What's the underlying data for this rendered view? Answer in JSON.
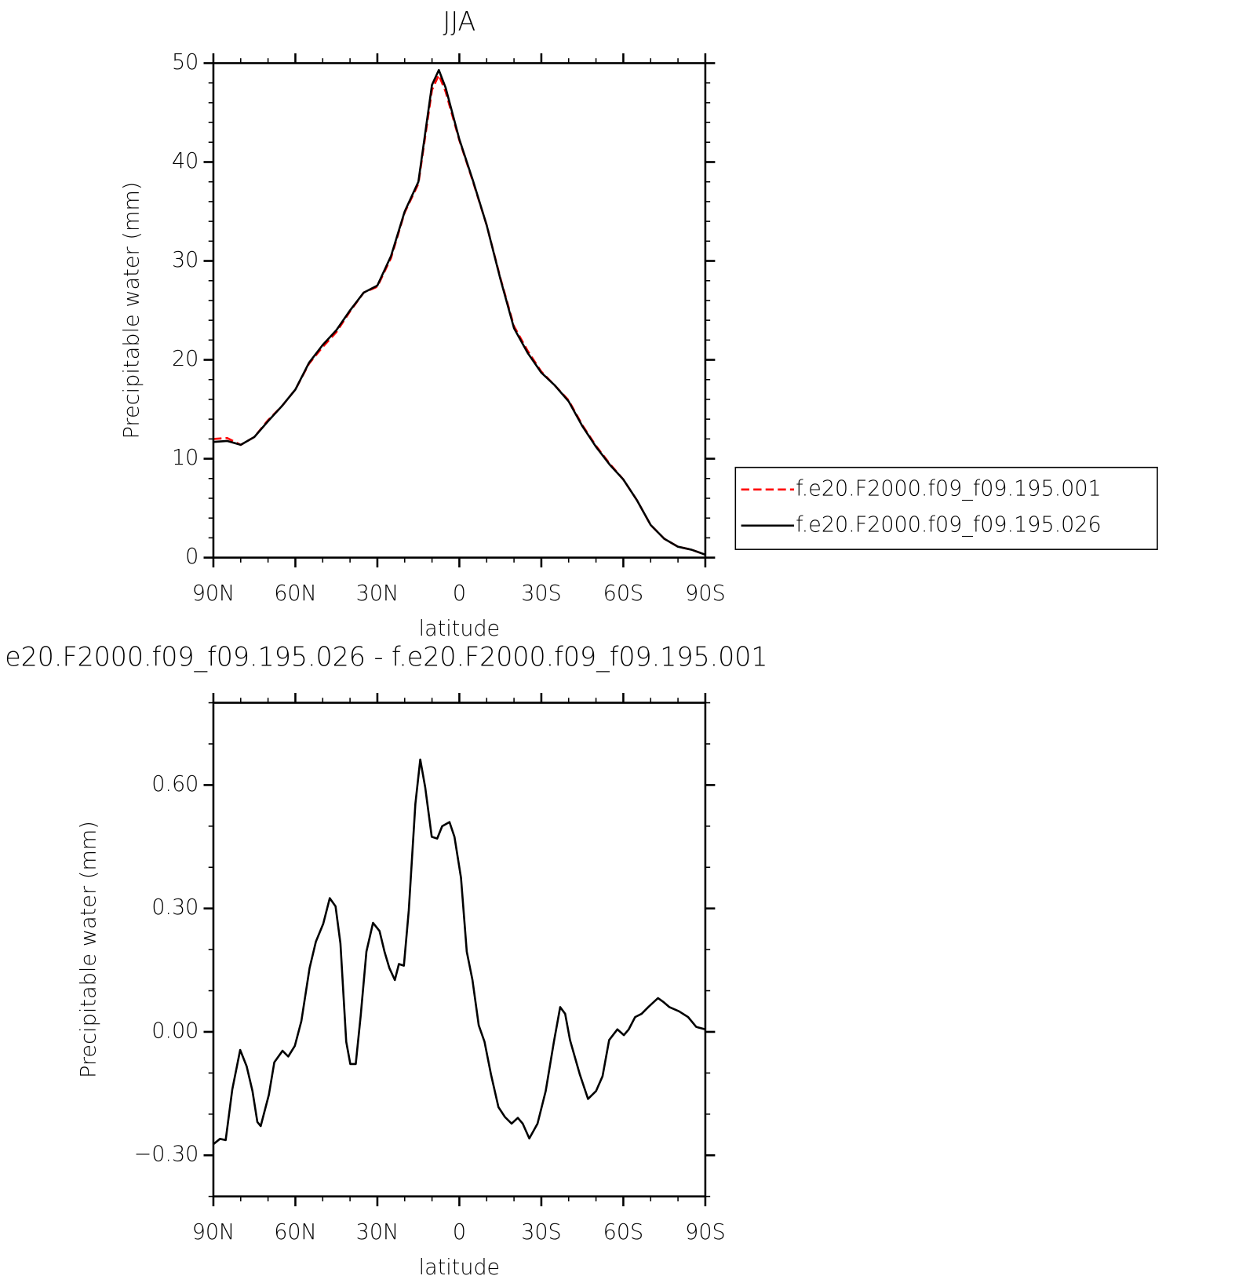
{
  "chart_data": [
    {
      "type": "line",
      "title": "JJA",
      "xlabel": "latitude",
      "ylabel": "Precipitable water (mm)",
      "x": [
        90,
        85,
        80,
        75,
        70,
        65,
        60,
        55,
        50,
        45,
        40,
        35,
        30,
        25,
        20,
        15,
        10,
        7.5,
        5,
        0,
        -5,
        -10,
        -15,
        -20,
        -25,
        -30,
        -35,
        -40,
        -45,
        -50,
        -55,
        -60,
        -65,
        -70,
        -75,
        -80,
        -85,
        -90
      ],
      "series": [
        {
          "name": "f.e20.F2000.f09_f09.195.001",
          "color": "#ff0000",
          "style": "dashed",
          "values": [
            12.0,
            12.1,
            11.4,
            12.2,
            13.9,
            15.3,
            17.0,
            19.6,
            21.3,
            22.8,
            24.9,
            26.8,
            27.4,
            30.3,
            34.9,
            37.8,
            47.3,
            48.8,
            47.1,
            42.2,
            38.0,
            33.6,
            28.3,
            23.4,
            20.9,
            18.8,
            17.4,
            15.9,
            13.4,
            11.3,
            9.5,
            7.9,
            5.8,
            3.3,
            1.9,
            1.1,
            0.8,
            0.3
          ]
        },
        {
          "name": "f.e20.F2000.f09_f09.195.026",
          "color": "#000000",
          "style": "solid",
          "values": [
            11.7,
            11.8,
            11.4,
            12.2,
            13.8,
            15.3,
            17.0,
            19.7,
            21.5,
            23.0,
            25.0,
            26.8,
            27.5,
            30.5,
            35.0,
            38.0,
            47.8,
            49.3,
            47.5,
            42.3,
            38.1,
            33.6,
            28.2,
            23.2,
            20.7,
            18.7,
            17.4,
            15.8,
            13.3,
            11.2,
            9.4,
            7.9,
            5.8,
            3.3,
            1.9,
            1.1,
            0.8,
            0.3
          ]
        }
      ],
      "xlim": [
        90,
        -90
      ],
      "xticks": [
        {
          "value": 90,
          "label": "90N"
        },
        {
          "value": 60,
          "label": "60N"
        },
        {
          "value": 30,
          "label": "30N"
        },
        0,
        {
          "value": -30,
          "label": "30S"
        },
        {
          "value": -60,
          "label": "60S"
        },
        {
          "value": -90,
          "label": "90S"
        }
      ],
      "ylim": [
        0,
        50
      ],
      "yticks": [
        0,
        10,
        20,
        30,
        40,
        50
      ],
      "legend": "right"
    },
    {
      "type": "line",
      "title": "e20.F2000.f09_f09.195.026 - f.e20.F2000.f09_f09.195.001",
      "xlabel": "latitude",
      "ylabel": "Precipitable water (mm)",
      "x": [
        90,
        87.6,
        85.5,
        83.1,
        80.2,
        77.8,
        75.7,
        73.9,
        72.7,
        69.7,
        67.7,
        64.7,
        62.6,
        60.2,
        57.8,
        54.8,
        52.5,
        49.8,
        47.4,
        45.3,
        43.5,
        41.4,
        39.9,
        37.9,
        36.1,
        34.0,
        31.6,
        29.2,
        27.4,
        25.6,
        23.6,
        22.1,
        20.3,
        18.5,
        16.1,
        14.3,
        12.5,
        10.1,
        8.1,
        6.3,
        3.6,
        1.8,
        -0.6,
        -2.7,
        -4.8,
        -7.1,
        -9.2,
        -11.6,
        -14.3,
        -16.7,
        -19.1,
        -21.4,
        -23.2,
        -25.6,
        -28.6,
        -31.6,
        -34.6,
        -36.9,
        -38.7,
        -40.5,
        -44.1,
        -47.1,
        -50.0,
        -52.4,
        -54.8,
        -57.8,
        -60.2,
        -62.0,
        -64.3,
        -66.7,
        -69.1,
        -72.7,
        -74.8,
        -76.9,
        -80.4,
        -83.7,
        -86.7,
        -90
      ],
      "series": [
        {
          "color": "#000000",
          "style": "solid",
          "values": [
            -0.273,
            -0.26,
            -0.263,
            -0.14,
            -0.044,
            -0.084,
            -0.144,
            -0.219,
            -0.229,
            -0.153,
            -0.074,
            -0.046,
            -0.06,
            -0.034,
            0.026,
            0.155,
            0.219,
            0.263,
            0.325,
            0.305,
            0.215,
            -0.024,
            -0.078,
            -0.078,
            0.04,
            0.195,
            0.265,
            0.245,
            0.195,
            0.155,
            0.126,
            0.165,
            0.161,
            0.295,
            0.554,
            0.662,
            0.594,
            0.474,
            0.47,
            0.5,
            0.51,
            0.474,
            0.375,
            0.195,
            0.126,
            0.016,
            -0.024,
            -0.104,
            -0.183,
            -0.207,
            -0.223,
            -0.209,
            -0.223,
            -0.259,
            -0.223,
            -0.144,
            -0.024,
            0.06,
            0.044,
            -0.02,
            -0.104,
            -0.163,
            -0.144,
            -0.108,
            -0.02,
            0.006,
            -0.008,
            0.006,
            0.036,
            0.044,
            0.06,
            0.082,
            0.072,
            0.06,
            0.05,
            0.036,
            0.012,
            0.006
          ]
        }
      ],
      "xlim": [
        90,
        -90
      ],
      "xticks": [
        {
          "value": 90,
          "label": "90N"
        },
        {
          "value": 60,
          "label": "60N"
        },
        {
          "value": 30,
          "label": "30N"
        },
        0,
        {
          "value": -30,
          "label": "30S"
        },
        {
          "value": -60,
          "label": "60S"
        },
        {
          "value": -90,
          "label": "90S"
        }
      ],
      "ylim": [
        -0.4,
        0.8
      ],
      "yticks": [
        {
          "value": -0.3,
          "label": "−0.30"
        },
        {
          "value": 0,
          "label": "0.00"
        },
        {
          "value": 0.3,
          "label": "0.30"
        },
        {
          "value": 0.6,
          "label": "0.60"
        }
      ]
    }
  ]
}
